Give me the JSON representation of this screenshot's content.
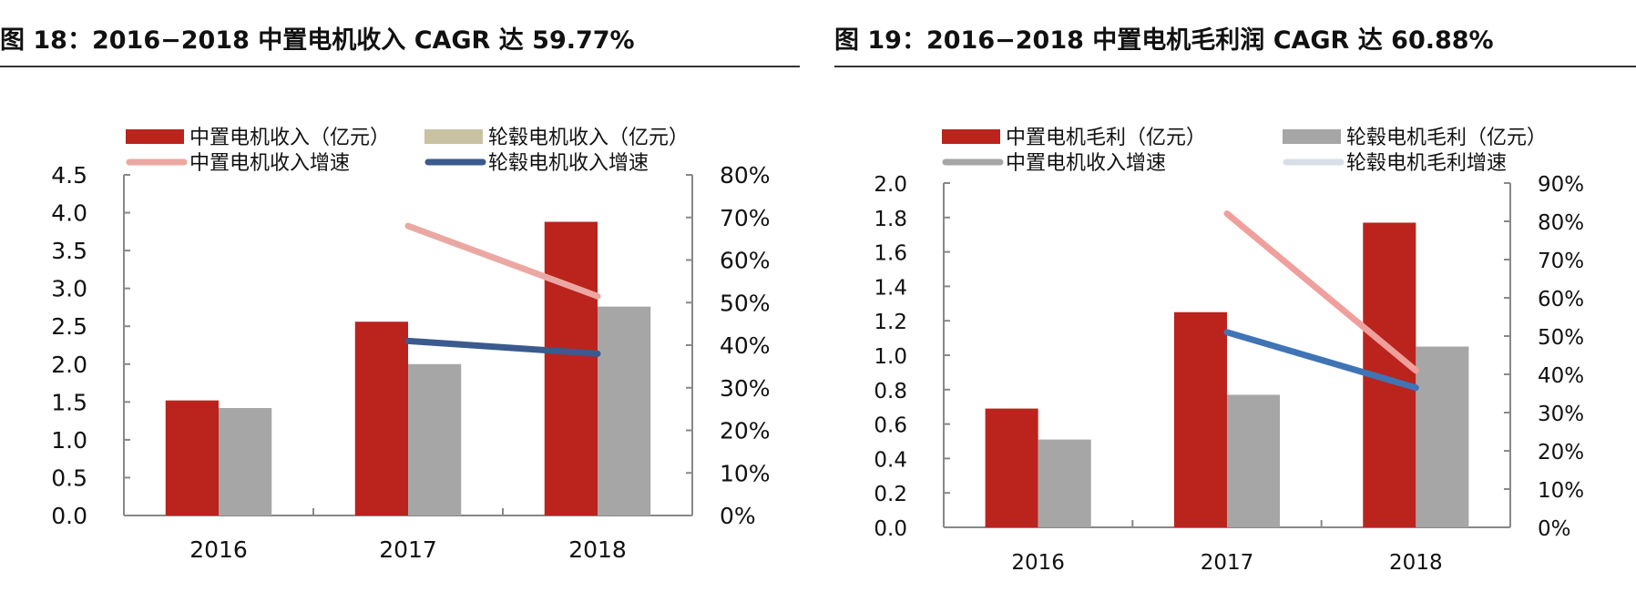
{
  "chart_data": [
    {
      "type": "bar+line",
      "title": "图 18：2016−2018 中置电机收入 CAGR 达 59.77%",
      "categories": [
        "2016",
        "2017",
        "2018"
      ],
      "left_axis": {
        "ylim": [
          0,
          4.5
        ],
        "ticks": [
          "0.0",
          "0.5",
          "1.0",
          "1.5",
          "2.0",
          "2.5",
          "3.0",
          "3.5",
          "4.0",
          "4.5"
        ],
        "step": 0.5
      },
      "right_axis": {
        "ylim": [
          0,
          0.8
        ],
        "ticks": [
          "0%",
          "10%",
          "20%",
          "30%",
          "40%",
          "50%",
          "60%",
          "70%",
          "80%"
        ]
      },
      "bars": [
        {
          "name": "中置电机收入（亿元）",
          "values": [
            1.52,
            2.56,
            3.88
          ],
          "color": "#bb231d",
          "legend_color": "#bb231d"
        },
        {
          "name": "轮毂电机收入（亿元）",
          "values": [
            1.42,
            2.0,
            2.76
          ],
          "color": "#a6a6a6",
          "legend_color": "#c8c2a2"
        }
      ],
      "lines": [
        {
          "name": "中置电机收入增速",
          "values": [
            null,
            0.68,
            0.515
          ],
          "color": "#eba8a2",
          "legend_color": "#eba8a2"
        },
        {
          "name": "轮毂电机收入增速",
          "values": [
            null,
            0.41,
            0.38
          ],
          "color": "#3b5a8e",
          "legend_color": "#3b5a8e"
        }
      ],
      "legend": "top",
      "grid": false
    },
    {
      "type": "bar+line",
      "title": "图 19：2016−2018 中置电机毛利润 CAGR 达 60.88%",
      "categories": [
        "2016",
        "2017",
        "2018"
      ],
      "left_axis": {
        "ylim": [
          0,
          2.0
        ],
        "ticks": [
          "0.0",
          "0.2",
          "0.4",
          "0.6",
          "0.8",
          "1.0",
          "1.2",
          "1.4",
          "1.6",
          "1.8",
          "2.0"
        ],
        "step": 0.2
      },
      "right_axis": {
        "ylim": [
          0,
          0.9
        ],
        "ticks": [
          "0%",
          "10%",
          "20%",
          "30%",
          "40%",
          "50%",
          "60%",
          "70%",
          "80%",
          "90%"
        ]
      },
      "bars": [
        {
          "name": "中置电机毛利（亿元）",
          "values": [
            0.69,
            1.25,
            1.77
          ],
          "color": "#bb231d",
          "legend_color": "#bb231d"
        },
        {
          "name": "轮毂电机毛利（亿元）",
          "values": [
            0.51,
            0.77,
            1.05
          ],
          "color": "#a6a6a6",
          "legend_color": "#a6a6a6"
        }
      ],
      "lines": [
        {
          "name": "中置电机收入增速",
          "values": [
            null,
            0.82,
            0.41
          ],
          "color": "#f0a09c",
          "legend_color": "#a6a6a6"
        },
        {
          "name": "轮毂电机毛利增速",
          "values": [
            null,
            0.51,
            0.365
          ],
          "color": "#3f74b5",
          "legend_color": "#d9dfe8"
        }
      ],
      "legend": "top",
      "grid": false
    }
  ]
}
